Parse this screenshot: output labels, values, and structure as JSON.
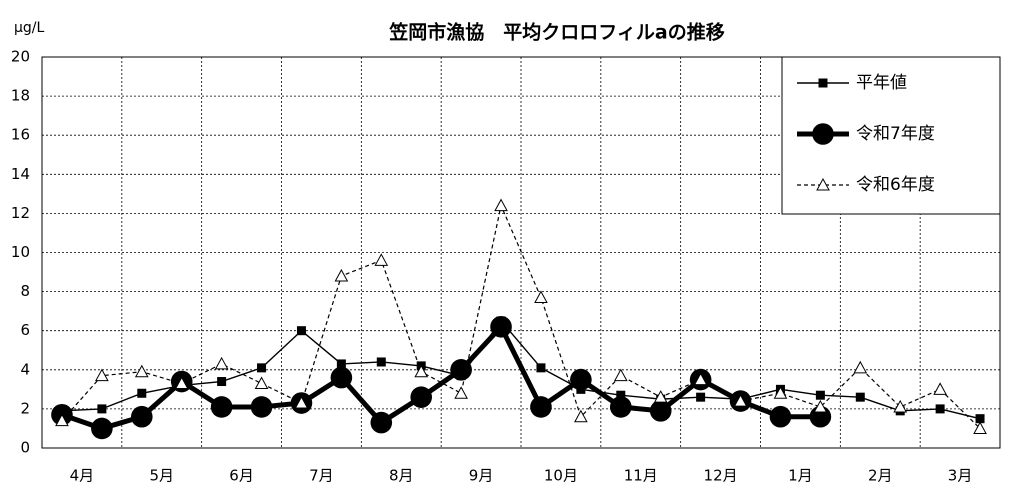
{
  "chart_data": {
    "type": "line",
    "title": "笠岡市漁協　平均クロロフィルaの推移",
    "y_label": "μg/L",
    "categories": [
      "4月",
      null,
      "5月",
      null,
      "6月",
      null,
      "7月",
      null,
      "8月",
      null,
      "9月",
      null,
      "10月",
      null,
      "11月",
      null,
      "12月",
      null,
      "1月",
      null,
      "2月",
      null,
      "3月",
      null
    ],
    "series": [
      {
        "name": "平年値",
        "color": "#000000",
        "marker": "square",
        "line_style": "solid",
        "values": [
          1.9,
          2.0,
          2.8,
          3.2,
          3.4,
          4.1,
          6.0,
          4.3,
          4.4,
          4.2,
          3.7,
          6.5,
          4.1,
          3.0,
          2.7,
          2.5,
          2.6,
          2.5,
          3.0,
          2.7,
          2.6,
          1.9,
          2.0,
          1.5
        ]
      },
      {
        "name": "令和7年度",
        "color": "#000000",
        "marker": "circle",
        "line_style": "bold",
        "values": [
          1.7,
          1.0,
          1.6,
          3.4,
          2.1,
          2.1,
          2.3,
          3.6,
          1.3,
          2.6,
          4.0,
          6.2,
          2.1,
          3.5,
          2.1,
          1.9,
          3.5,
          2.4,
          1.6,
          1.6,
          null,
          null,
          null,
          null
        ]
      },
      {
        "name": "令和6年度",
        "color": "#000000",
        "marker": "triangle",
        "line_style": "dashed",
        "values": [
          1.4,
          3.7,
          3.9,
          3.3,
          4.3,
          3.3,
          2.3,
          8.8,
          9.6,
          3.9,
          2.8,
          12.4,
          7.7,
          1.6,
          3.7,
          2.6,
          3.5,
          2.4,
          2.8,
          2.1,
          4.1,
          2.1,
          3.0,
          1.0
        ]
      }
    ],
    "ylim": [
      0,
      20
    ],
    "yticks": [
      0,
      2,
      4,
      6,
      8,
      10,
      12,
      14,
      16,
      18,
      20
    ],
    "grid": true,
    "legend": "upper right"
  }
}
